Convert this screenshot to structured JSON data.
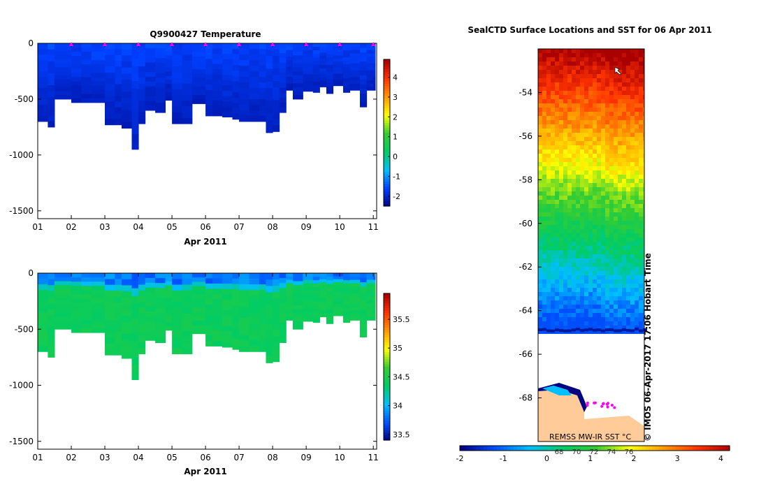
{
  "colors": {
    "temperature_scale": [
      "#000080",
      "#0040ff",
      "#00bfff",
      "#00cc66",
      "#33cc33",
      "#ffff00",
      "#ff9900",
      "#ff3300",
      "#aa0000"
    ],
    "salinity_scale": [
      "#000080",
      "#0050ff",
      "#00bfff",
      "#00cc66",
      "#33cc33",
      "#ffff00",
      "#ff9900",
      "#ff3300",
      "#aa0000"
    ],
    "sst_scale": [
      "#000080",
      "#0050ff",
      "#00bfff",
      "#00cc66",
      "#33cc33",
      "#ffff00",
      "#ff9900",
      "#ff3300",
      "#aa0000"
    ],
    "land": "#ffcc99",
    "track_marker": "#ff00ff",
    "surface_marker": "#ff00ff"
  },
  "chart_data": [
    {
      "type": "heatmap",
      "title": "Q9900427  Temperature",
      "xlabel": "Apr 2011",
      "ylabel": "",
      "x_tick_labels": [
        "01",
        "02",
        "03",
        "04",
        "05",
        "06",
        "07",
        "08",
        "09",
        "10",
        "11"
      ],
      "xlim": [
        1,
        11.1
      ],
      "y_tick_labels": [
        "0",
        "-500",
        "-1000",
        "-1500"
      ],
      "ylim": [
        -1570,
        0
      ],
      "colorbar": {
        "ticks": [
          "-2",
          "-1",
          "0",
          "1",
          "2",
          "3",
          "4"
        ],
        "range": [
          -2.5,
          4.9
        ]
      },
      "profile_x": [
        1.0,
        1.3,
        1.5,
        2.0,
        2.3,
        2.6,
        3.0,
        3.3,
        3.5,
        3.8,
        4.0,
        4.2,
        4.5,
        4.8,
        5.0,
        5.3,
        5.6,
        6.0,
        6.2,
        6.5,
        6.8,
        7.0,
        7.3,
        7.6,
        7.8,
        8.0,
        8.2,
        8.4,
        8.6,
        8.9,
        9.2,
        9.4,
        9.6,
        9.8,
        10.1,
        10.3,
        10.6,
        10.8,
        11.0
      ],
      "profile_depth": [
        -700,
        -750,
        -500,
        -530,
        -530,
        -530,
        -730,
        -730,
        -760,
        -950,
        -720,
        -600,
        -620,
        -510,
        -720,
        -720,
        -540,
        -650,
        -650,
        -660,
        -680,
        -700,
        -700,
        -700,
        -800,
        -790,
        -620,
        -420,
        -500,
        -430,
        -440,
        -390,
        -450,
        -380,
        -440,
        -420,
        -570,
        -420,
        -420
      ],
      "surface_marker_x": [
        2,
        3,
        4,
        5,
        6,
        7,
        8,
        9,
        10,
        11
      ]
    },
    {
      "type": "heatmap",
      "title": "",
      "xlabel": "Apr 2011",
      "ylabel": "",
      "x_tick_labels": [
        "01",
        "02",
        "03",
        "04",
        "05",
        "06",
        "07",
        "08",
        "09",
        "10",
        "11"
      ],
      "xlim": [
        1,
        11.1
      ],
      "y_tick_labels": [
        "0",
        "-500",
        "-1000",
        "-1500"
      ],
      "ylim": [
        -1570,
        0
      ],
      "colorbar": {
        "ticks": [
          "33.5",
          "34",
          "34.5",
          "35",
          "35.5"
        ],
        "range": [
          33.4,
          35.95
        ]
      },
      "profile_x": [
        1.0,
        1.3,
        1.5,
        2.0,
        2.3,
        2.6,
        3.0,
        3.3,
        3.5,
        3.8,
        4.0,
        4.2,
        4.5,
        4.8,
        5.0,
        5.3,
        5.6,
        6.0,
        6.2,
        6.5,
        6.8,
        7.0,
        7.3,
        7.6,
        7.8,
        8.0,
        8.2,
        8.4,
        8.6,
        8.9,
        9.2,
        9.4,
        9.6,
        9.8,
        10.1,
        10.3,
        10.6,
        10.8,
        11.0
      ],
      "profile_depth": [
        -700,
        -750,
        -500,
        -530,
        -530,
        -530,
        -730,
        -730,
        -760,
        -950,
        -720,
        -600,
        -620,
        -510,
        -720,
        -720,
        -540,
        -650,
        -650,
        -660,
        -680,
        -700,
        -700,
        -700,
        -800,
        -790,
        -620,
        -420,
        -500,
        -430,
        -440,
        -390,
        -450,
        -380,
        -440,
        -420,
        -570,
        -420,
        -420
      ]
    },
    {
      "type": "heatmap",
      "title": "SealCTD Surface Locations and SST for 06 Apr 2011",
      "y_tick_labels": [
        "-54",
        "-56",
        "-58",
        "-60",
        "-62",
        "-64",
        "-66",
        "-68"
      ],
      "ylim": [
        -70,
        -52
      ],
      "colorbar": {
        "ticks": [
          "-2",
          "-1",
          "0",
          "1",
          "2",
          "3",
          "4"
        ],
        "range": [
          -2,
          4.2
        ]
      },
      "colorbar_inner_labels": [
        "68",
        "70",
        "72",
        "74",
        "76"
      ],
      "source_label": "REMSS MW-IR SST °C",
      "side_label": "© IMOS 06-Apr-2017 17:06 Hobart Time"
    }
  ]
}
